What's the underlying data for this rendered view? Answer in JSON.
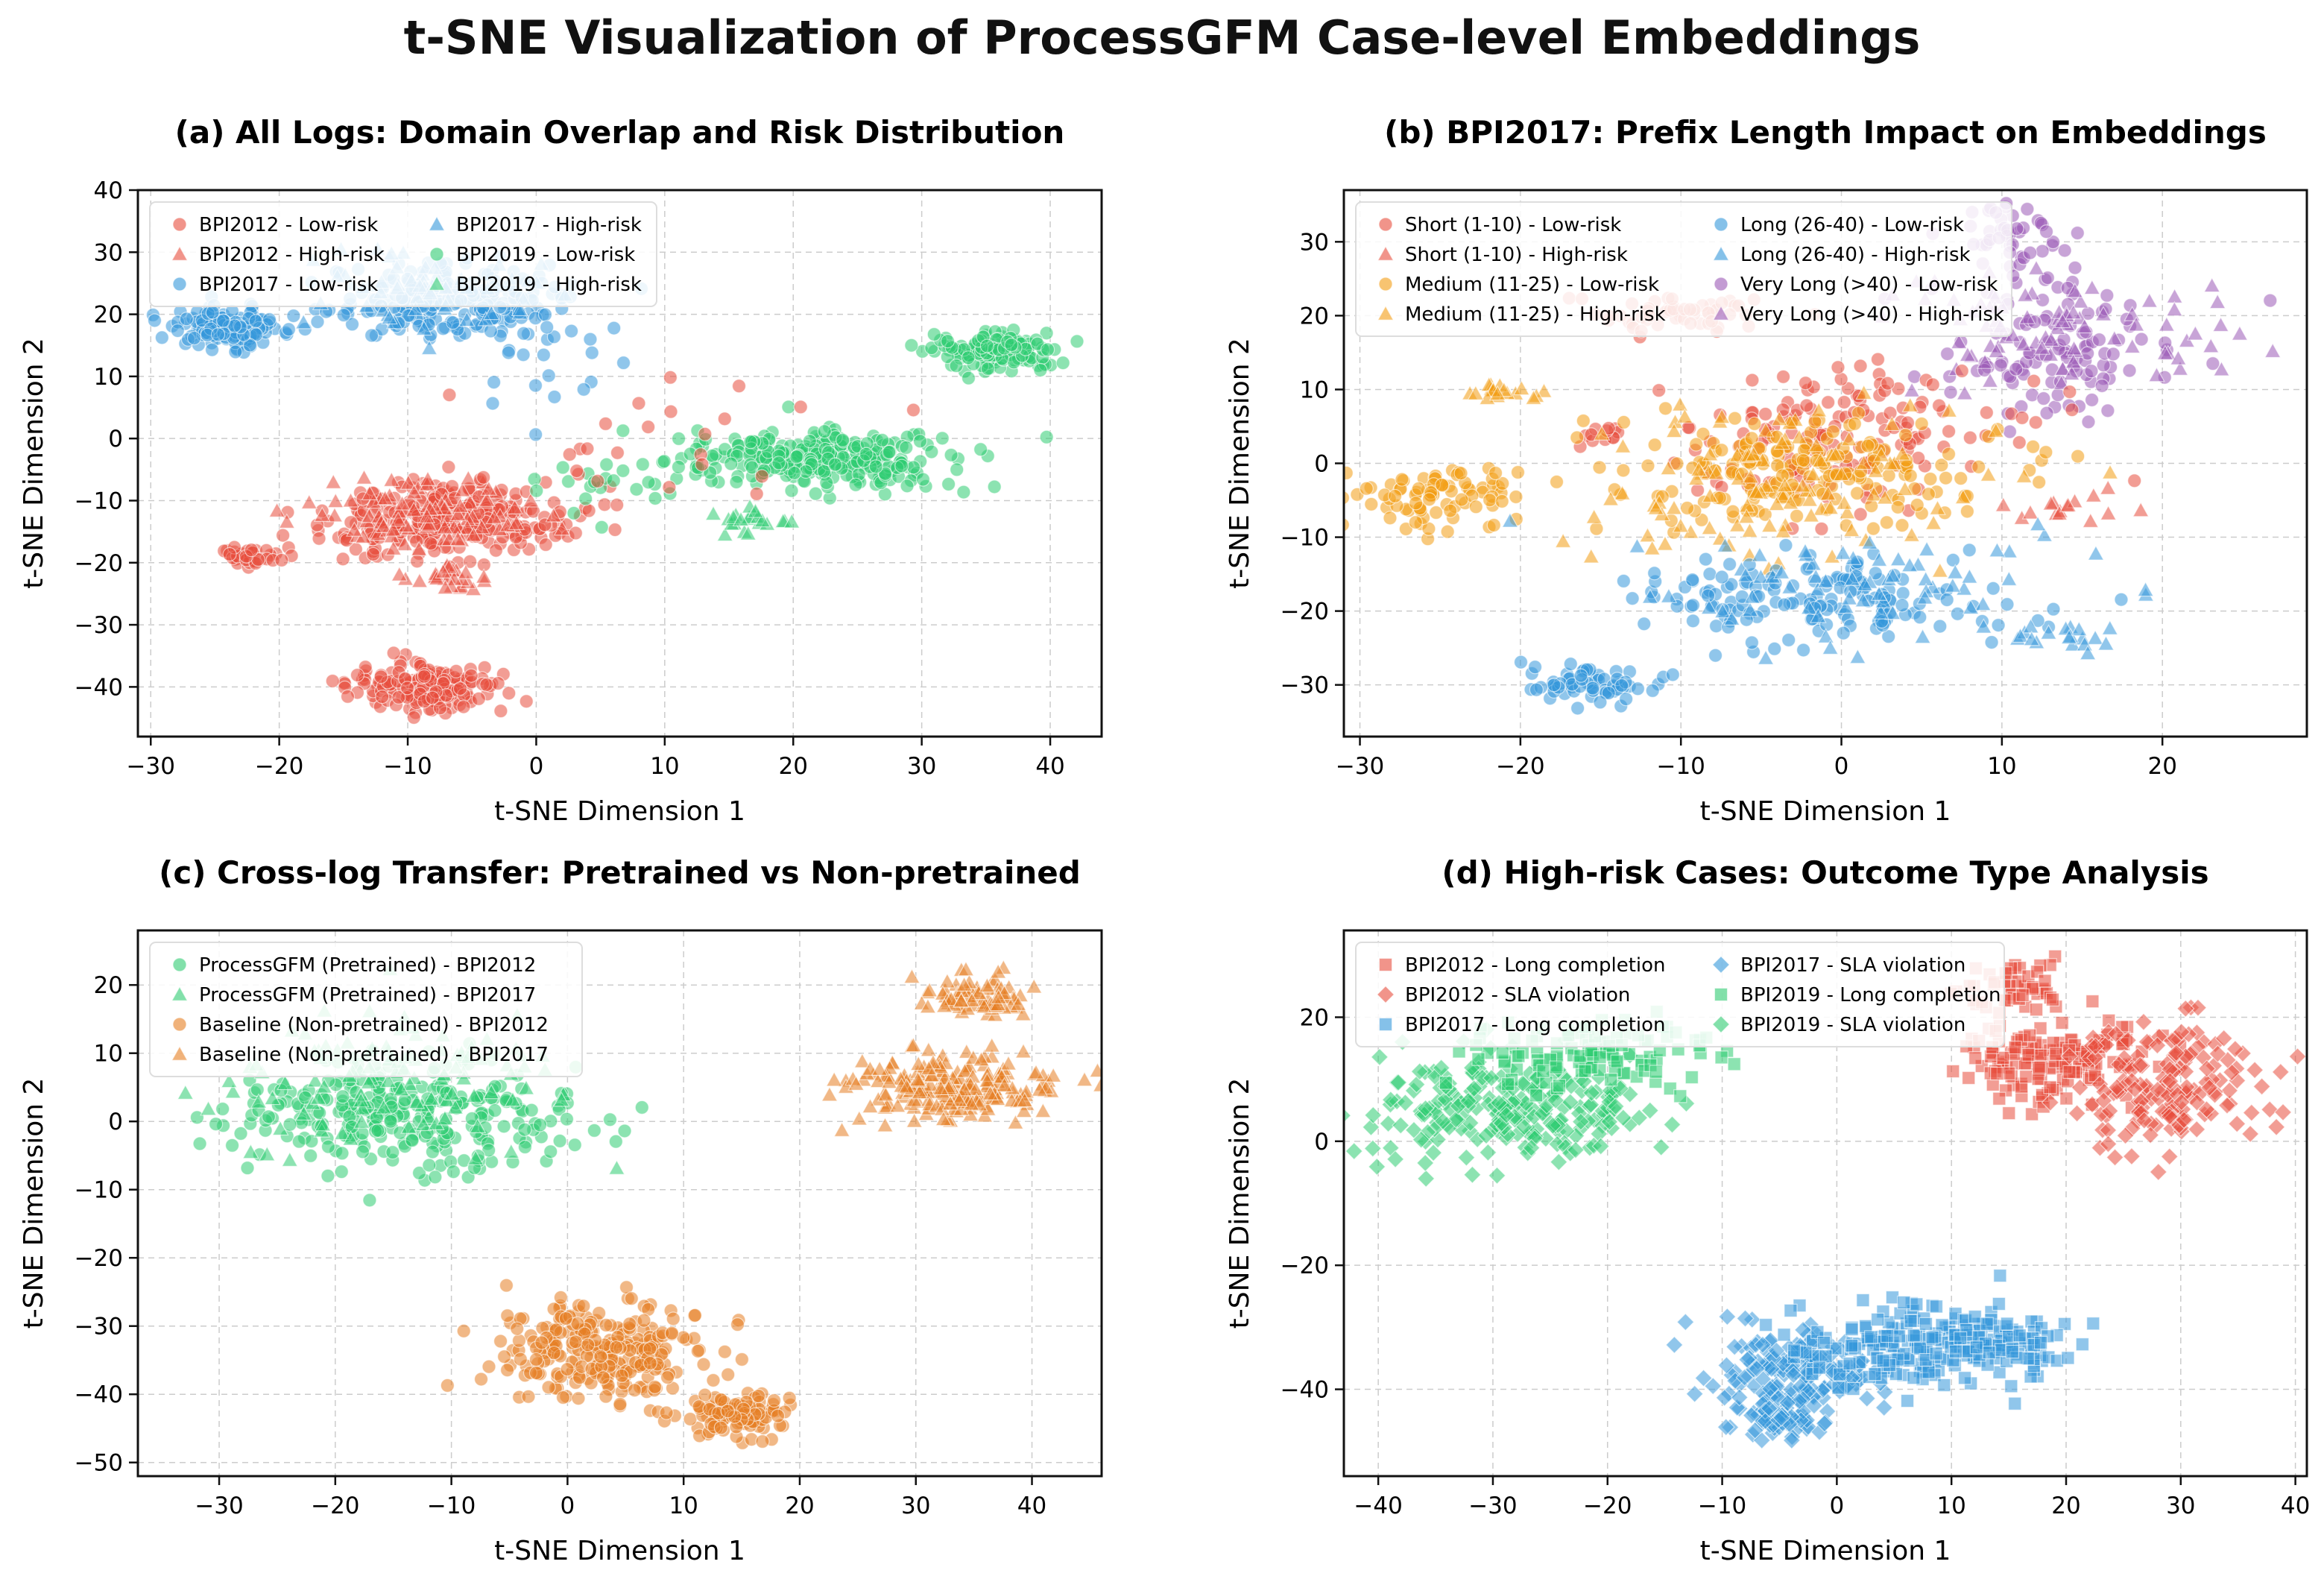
{
  "figure_title": "t-SNE Visualization of ProcessGFM Case-level Embeddings",
  "colors": {
    "red": "#e74c3c",
    "blue": "#3498db",
    "green": "#2ecc71",
    "orange": "#f39c12",
    "purple": "#9b59b6",
    "dark_orange": "#e67e22"
  },
  "chart_data": [
    {
      "type": "scatter",
      "title": "(a) All Logs: Domain Overlap and Risk Distribution",
      "xlabel": "t-SNE Dimension 1",
      "ylabel": "t-SNE Dimension 2",
      "xlim": [
        -31,
        44
      ],
      "ylim": [
        -48,
        40
      ],
      "xticks": [
        -30,
        -20,
        -10,
        0,
        10,
        20,
        30,
        40
      ],
      "yticks": [
        -40,
        -30,
        -20,
        -10,
        0,
        10,
        20,
        30,
        40
      ],
      "grid": true,
      "legend_position": "upper-left",
      "legend_columns": 2,
      "legend": [
        {
          "label": "BPI2012 - Low-risk",
          "marker": "circle",
          "color": "#e74c3c"
        },
        {
          "label": "BPI2012 - High-risk",
          "marker": "triangle",
          "color": "#e74c3c"
        },
        {
          "label": "BPI2017 - Low-risk",
          "marker": "circle",
          "color": "#3498db"
        },
        {
          "label": "BPI2017 - High-risk",
          "marker": "triangle",
          "color": "#3498db"
        },
        {
          "label": "BPI2019 - Low-risk",
          "marker": "circle",
          "color": "#2ecc71"
        },
        {
          "label": "BPI2019 - High-risk",
          "marker": "triangle",
          "color": "#2ecc71"
        }
      ],
      "clusters": [
        {
          "series": "BPI2017 - Low-risk",
          "marker": "circle",
          "color": "#3498db",
          "center": [
            -24,
            18
          ],
          "spread": [
            2.3,
            1.6
          ],
          "n": 140
        },
        {
          "series": "BPI2017 - Low-risk",
          "marker": "circle",
          "color": "#3498db",
          "center": [
            -6.5,
            22
          ],
          "spread": [
            4.6,
            3.2
          ],
          "n": 220
        },
        {
          "series": "BPI2017 - High-risk",
          "marker": "triangle",
          "color": "#3498db",
          "center": [
            -8,
            24
          ],
          "spread": [
            4.2,
            3.2
          ],
          "n": 60
        },
        {
          "series": "BPI2012 - Low-risk",
          "marker": "circle",
          "color": "#e74c3c",
          "center": [
            -7,
            -13
          ],
          "spread": [
            5.2,
            3.0
          ],
          "n": 260
        },
        {
          "series": "BPI2012 - High-risk",
          "marker": "triangle",
          "color": "#e74c3c",
          "center": [
            -9,
            -12
          ],
          "spread": [
            4.5,
            2.5
          ],
          "n": 90
        },
        {
          "series": "BPI2012 - High-risk",
          "marker": "triangle",
          "color": "#e74c3c",
          "center": [
            -6.5,
            -22
          ],
          "spread": [
            1.4,
            1.3
          ],
          "n": 25
        },
        {
          "series": "BPI2012 - Low-risk",
          "marker": "circle",
          "color": "#e74c3c",
          "center": [
            -22.5,
            -19
          ],
          "spread": [
            1.3,
            0.8
          ],
          "n": 35
        },
        {
          "series": "BPI2012 - Low-risk",
          "marker": "circle",
          "color": "#e74c3c",
          "center": [
            -8.5,
            -40
          ],
          "spread": [
            2.7,
            1.9
          ],
          "n": 170
        },
        {
          "series": "BPI2019 - Low-risk",
          "marker": "circle",
          "color": "#2ecc71",
          "center": [
            22,
            -3.5
          ],
          "spread": [
            5.2,
            2.3
          ],
          "n": 300
        },
        {
          "series": "BPI2019 - High-risk",
          "marker": "triangle",
          "color": "#2ecc71",
          "center": [
            17,
            -13
          ],
          "spread": [
            1.6,
            1.2
          ],
          "n": 22
        },
        {
          "series": "BPI2019 - Low-risk",
          "marker": "circle",
          "color": "#2ecc71",
          "center": [
            35.5,
            14
          ],
          "spread": [
            2.1,
            1.4
          ],
          "n": 140
        },
        {
          "series": "BPI2019 - Low-risk",
          "marker": "circle",
          "color": "#2ecc71",
          "center": [
            6,
            -7
          ],
          "spread": [
            4.0,
            3.0
          ],
          "n": 22
        },
        {
          "series": "BPI2012 - Low-risk",
          "marker": "circle",
          "color": "#e74c3c",
          "center": [
            8,
            -2
          ],
          "spread": [
            8.0,
            7.0
          ],
          "n": 26
        },
        {
          "series": "BPI2017 - Low-risk",
          "marker": "circle",
          "color": "#3498db",
          "center": [
            2,
            10
          ],
          "spread": [
            4.0,
            4.0
          ],
          "n": 15
        }
      ]
    },
    {
      "type": "scatter",
      "title": "(b) BPI2017: Prefix Length Impact on Embeddings",
      "xlabel": "t-SNE Dimension 1",
      "ylabel": "t-SNE Dimension 2",
      "xlim": [
        -31,
        29
      ],
      "ylim": [
        -37,
        37
      ],
      "xticks": [
        -30,
        -20,
        -10,
        0,
        10,
        20
      ],
      "yticks": [
        -30,
        -20,
        -10,
        0,
        10,
        20,
        30
      ],
      "grid": true,
      "legend_position": "upper-left",
      "legend_columns": 2,
      "legend": [
        {
          "label": "Short (1-10) - Low-risk",
          "marker": "circle",
          "color": "#e74c3c"
        },
        {
          "label": "Short (1-10) - High-risk",
          "marker": "triangle",
          "color": "#e74c3c"
        },
        {
          "label": "Medium (11-25) - Low-risk",
          "marker": "circle",
          "color": "#f39c12"
        },
        {
          "label": "Medium (11-25) - High-risk",
          "marker": "triangle",
          "color": "#f39c12"
        },
        {
          "label": "Long (26-40) - Low-risk",
          "marker": "circle",
          "color": "#3498db"
        },
        {
          "label": "Long (26-40) - High-risk",
          "marker": "triangle",
          "color": "#3498db"
        },
        {
          "label": "Very Long (>40) - Low-risk",
          "marker": "circle",
          "color": "#9b59b6"
        },
        {
          "label": "Very Long (>40) - High-risk",
          "marker": "triangle",
          "color": "#9b59b6"
        }
      ],
      "clusters": [
        {
          "series": "Very Long (>40) - Low-risk",
          "marker": "circle",
          "color": "#9b59b6",
          "center": [
            11,
            31
          ],
          "spread": [
            2.0,
            2.0
          ],
          "n": 45
        },
        {
          "series": "Very Long (>40) - Low-risk",
          "marker": "circle",
          "color": "#9b59b6",
          "center": [
            14,
            16
          ],
          "spread": [
            4.0,
            4.5
          ],
          "n": 110
        },
        {
          "series": "Very Long (>40) - High-risk",
          "marker": "triangle",
          "color": "#9b59b6",
          "center": [
            14,
            18
          ],
          "spread": [
            6.0,
            5.0
          ],
          "n": 85
        },
        {
          "series": "Short (1-10) - Low-risk",
          "marker": "circle",
          "color": "#e74c3c",
          "center": [
            -10,
            20
          ],
          "spread": [
            3.0,
            1.5
          ],
          "n": 55
        },
        {
          "series": "Short (1-10) - Low-risk",
          "marker": "circle",
          "color": "#e74c3c",
          "center": [
            0,
            4
          ],
          "spread": [
            5.0,
            5.0
          ],
          "n": 150
        },
        {
          "series": "Short (1-10) - High-risk",
          "marker": "triangle",
          "color": "#e74c3c",
          "center": [
            14.5,
            -6
          ],
          "spread": [
            2.0,
            1.0
          ],
          "n": 16
        },
        {
          "series": "Short (1-10) - Low-risk",
          "marker": "circle",
          "color": "#e74c3c",
          "center": [
            -14.5,
            4
          ],
          "spread": [
            1.0,
            0.8
          ],
          "n": 12
        },
        {
          "series": "Medium (11-25) - Low-risk",
          "marker": "circle",
          "color": "#f39c12",
          "center": [
            -25,
            -5
          ],
          "spread": [
            2.5,
            2.2
          ],
          "n": 85
        },
        {
          "series": "Medium (11-25) - Low-risk",
          "marker": "circle",
          "color": "#f39c12",
          "center": [
            -3,
            -1
          ],
          "spread": [
            6.0,
            3.5
          ],
          "n": 190
        },
        {
          "series": "Medium (11-25) - High-risk",
          "marker": "triangle",
          "color": "#f39c12",
          "center": [
            -4,
            -3
          ],
          "spread": [
            7.0,
            5.0
          ],
          "n": 110
        },
        {
          "series": "Medium (11-25) - High-risk",
          "marker": "triangle",
          "color": "#f39c12",
          "center": [
            -20.5,
            9.5
          ],
          "spread": [
            1.5,
            0.9
          ],
          "n": 18
        },
        {
          "series": "Long (26-40) - Low-risk",
          "marker": "circle",
          "color": "#3498db",
          "center": [
            -15.5,
            -30
          ],
          "spread": [
            2.0,
            1.3
          ],
          "n": 65
        },
        {
          "series": "Long (26-40) - Low-risk",
          "marker": "circle",
          "color": "#3498db",
          "center": [
            -1,
            -18
          ],
          "spread": [
            6.0,
            3.0
          ],
          "n": 160
        },
        {
          "series": "Long (26-40) - High-risk",
          "marker": "triangle",
          "color": "#3498db",
          "center": [
            2,
            -17
          ],
          "spread": [
            7.0,
            4.0
          ],
          "n": 70
        },
        {
          "series": "Long (26-40) - High-risk",
          "marker": "triangle",
          "color": "#3498db",
          "center": [
            13,
            -23.5
          ],
          "spread": [
            1.8,
            1.0
          ],
          "n": 18
        }
      ]
    },
    {
      "type": "scatter",
      "title": "(c) Cross-log Transfer: Pretrained vs Non-pretrained",
      "xlabel": "t-SNE Dimension 1",
      "ylabel": "t-SNE Dimension 2",
      "xlim": [
        -37,
        46
      ],
      "ylim": [
        -52,
        28
      ],
      "xticks": [
        -30,
        -20,
        -10,
        0,
        10,
        20,
        30,
        40
      ],
      "yticks": [
        -50,
        -40,
        -30,
        -20,
        -10,
        0,
        10,
        20
      ],
      "grid": true,
      "legend_position": "upper-left",
      "legend_columns": 1,
      "legend": [
        {
          "label": "ProcessGFM (Pretrained) - BPI2012",
          "marker": "circle",
          "color": "#2ecc71"
        },
        {
          "label": "ProcessGFM (Pretrained) - BPI2017",
          "marker": "triangle",
          "color": "#2ecc71"
        },
        {
          "label": "Baseline (Non-pretrained) - BPI2012",
          "marker": "circle",
          "color": "#e67e22"
        },
        {
          "label": "Baseline (Non-pretrained) - BPI2017",
          "marker": "triangle",
          "color": "#e67e22"
        }
      ],
      "clusters": [
        {
          "series": "ProcessGFM (Pretrained) - BPI2012",
          "marker": "circle",
          "color": "#2ecc71",
          "center": [
            -14,
            1
          ],
          "spread": [
            7.0,
            4.5
          ],
          "n": 280
        },
        {
          "series": "ProcessGFM (Pretrained) - BPI2017",
          "marker": "triangle",
          "color": "#2ecc71",
          "center": [
            -16,
            6
          ],
          "spread": [
            8.0,
            5.0
          ],
          "n": 110
        },
        {
          "series": "Baseline (Non-pretrained) - BPI2017",
          "marker": "triangle",
          "color": "#e67e22",
          "center": [
            33,
            5
          ],
          "spread": [
            4.5,
            2.4
          ],
          "n": 220
        },
        {
          "series": "Baseline (Non-pretrained) - BPI2017",
          "marker": "triangle",
          "color": "#e67e22",
          "center": [
            35,
            18.5
          ],
          "spread": [
            2.2,
            1.6
          ],
          "n": 75
        },
        {
          "series": "Baseline (Non-pretrained) - BPI2012",
          "marker": "circle",
          "color": "#e67e22",
          "center": [
            3,
            -34
          ],
          "spread": [
            4.8,
            3.4
          ],
          "n": 260
        },
        {
          "series": "Baseline (Non-pretrained) - BPI2012",
          "marker": "circle",
          "color": "#e67e22",
          "center": [
            14.5,
            -43
          ],
          "spread": [
            2.3,
            1.6
          ],
          "n": 110
        }
      ]
    },
    {
      "type": "scatter",
      "title": "(d) High-risk Cases: Outcome Type Analysis",
      "xlabel": "t-SNE Dimension 1",
      "ylabel": "t-SNE Dimension 2",
      "xlim": [
        -43,
        41
      ],
      "ylim": [
        -54,
        34
      ],
      "xticks": [
        -40,
        -30,
        -20,
        -10,
        0,
        10,
        20,
        30,
        40
      ],
      "yticks": [
        -40,
        -20,
        0,
        20
      ],
      "grid": true,
      "legend_position": "upper-left",
      "legend_columns": 2,
      "legend": [
        {
          "label": "BPI2012 - Long completion",
          "marker": "square",
          "color": "#e74c3c"
        },
        {
          "label": "BPI2012 - SLA violation",
          "marker": "diamond",
          "color": "#e74c3c"
        },
        {
          "label": "BPI2017 - Long completion",
          "marker": "square",
          "color": "#3498db"
        },
        {
          "label": "BPI2017 - SLA violation",
          "marker": "diamond",
          "color": "#3498db"
        },
        {
          "label": "BPI2019 - Long completion",
          "marker": "square",
          "color": "#2ecc71"
        },
        {
          "label": "BPI2019 - SLA violation",
          "marker": "diamond",
          "color": "#2ecc71"
        }
      ],
      "clusters": [
        {
          "series": "BPI2019 - SLA violation",
          "marker": "diamond",
          "color": "#2ecc71",
          "center": [
            -28,
            6
          ],
          "spread": [
            6.0,
            4.5
          ],
          "n": 230
        },
        {
          "series": "BPI2019 - Long completion",
          "marker": "square",
          "color": "#2ecc71",
          "center": [
            -21,
            14
          ],
          "spread": [
            5.0,
            3.0
          ],
          "n": 110
        },
        {
          "series": "BPI2012 - Long completion",
          "marker": "square",
          "color": "#e74c3c",
          "center": [
            19,
            13
          ],
          "spread": [
            4.0,
            3.5
          ],
          "n": 150
        },
        {
          "series": "BPI2012 - Long completion",
          "marker": "square",
          "color": "#e74c3c",
          "center": [
            15.5,
            25
          ],
          "spread": [
            2.0,
            2.0
          ],
          "n": 45
        },
        {
          "series": "BPI2012 - SLA violation",
          "marker": "diamond",
          "color": "#e74c3c",
          "center": [
            29,
            9
          ],
          "spread": [
            4.0,
            5.0
          ],
          "n": 160
        },
        {
          "series": "BPI2017 - SLA violation",
          "marker": "diamond",
          "color": "#3498db",
          "center": [
            -4,
            -37
          ],
          "spread": [
            4.0,
            3.5
          ],
          "n": 150
        },
        {
          "series": "BPI2017 - SLA violation",
          "marker": "diamond",
          "color": "#3498db",
          "center": [
            -5,
            -45
          ],
          "spread": [
            2.0,
            1.5
          ],
          "n": 55
        },
        {
          "series": "BPI2017 - Long completion",
          "marker": "square",
          "color": "#3498db",
          "center": [
            7,
            -33
          ],
          "spread": [
            5.5,
            3.5
          ],
          "n": 200
        },
        {
          "series": "BPI2017 - Long completion",
          "marker": "square",
          "color": "#3498db",
          "center": [
            15,
            -33
          ],
          "spread": [
            2.5,
            2.0
          ],
          "n": 45
        }
      ]
    }
  ]
}
